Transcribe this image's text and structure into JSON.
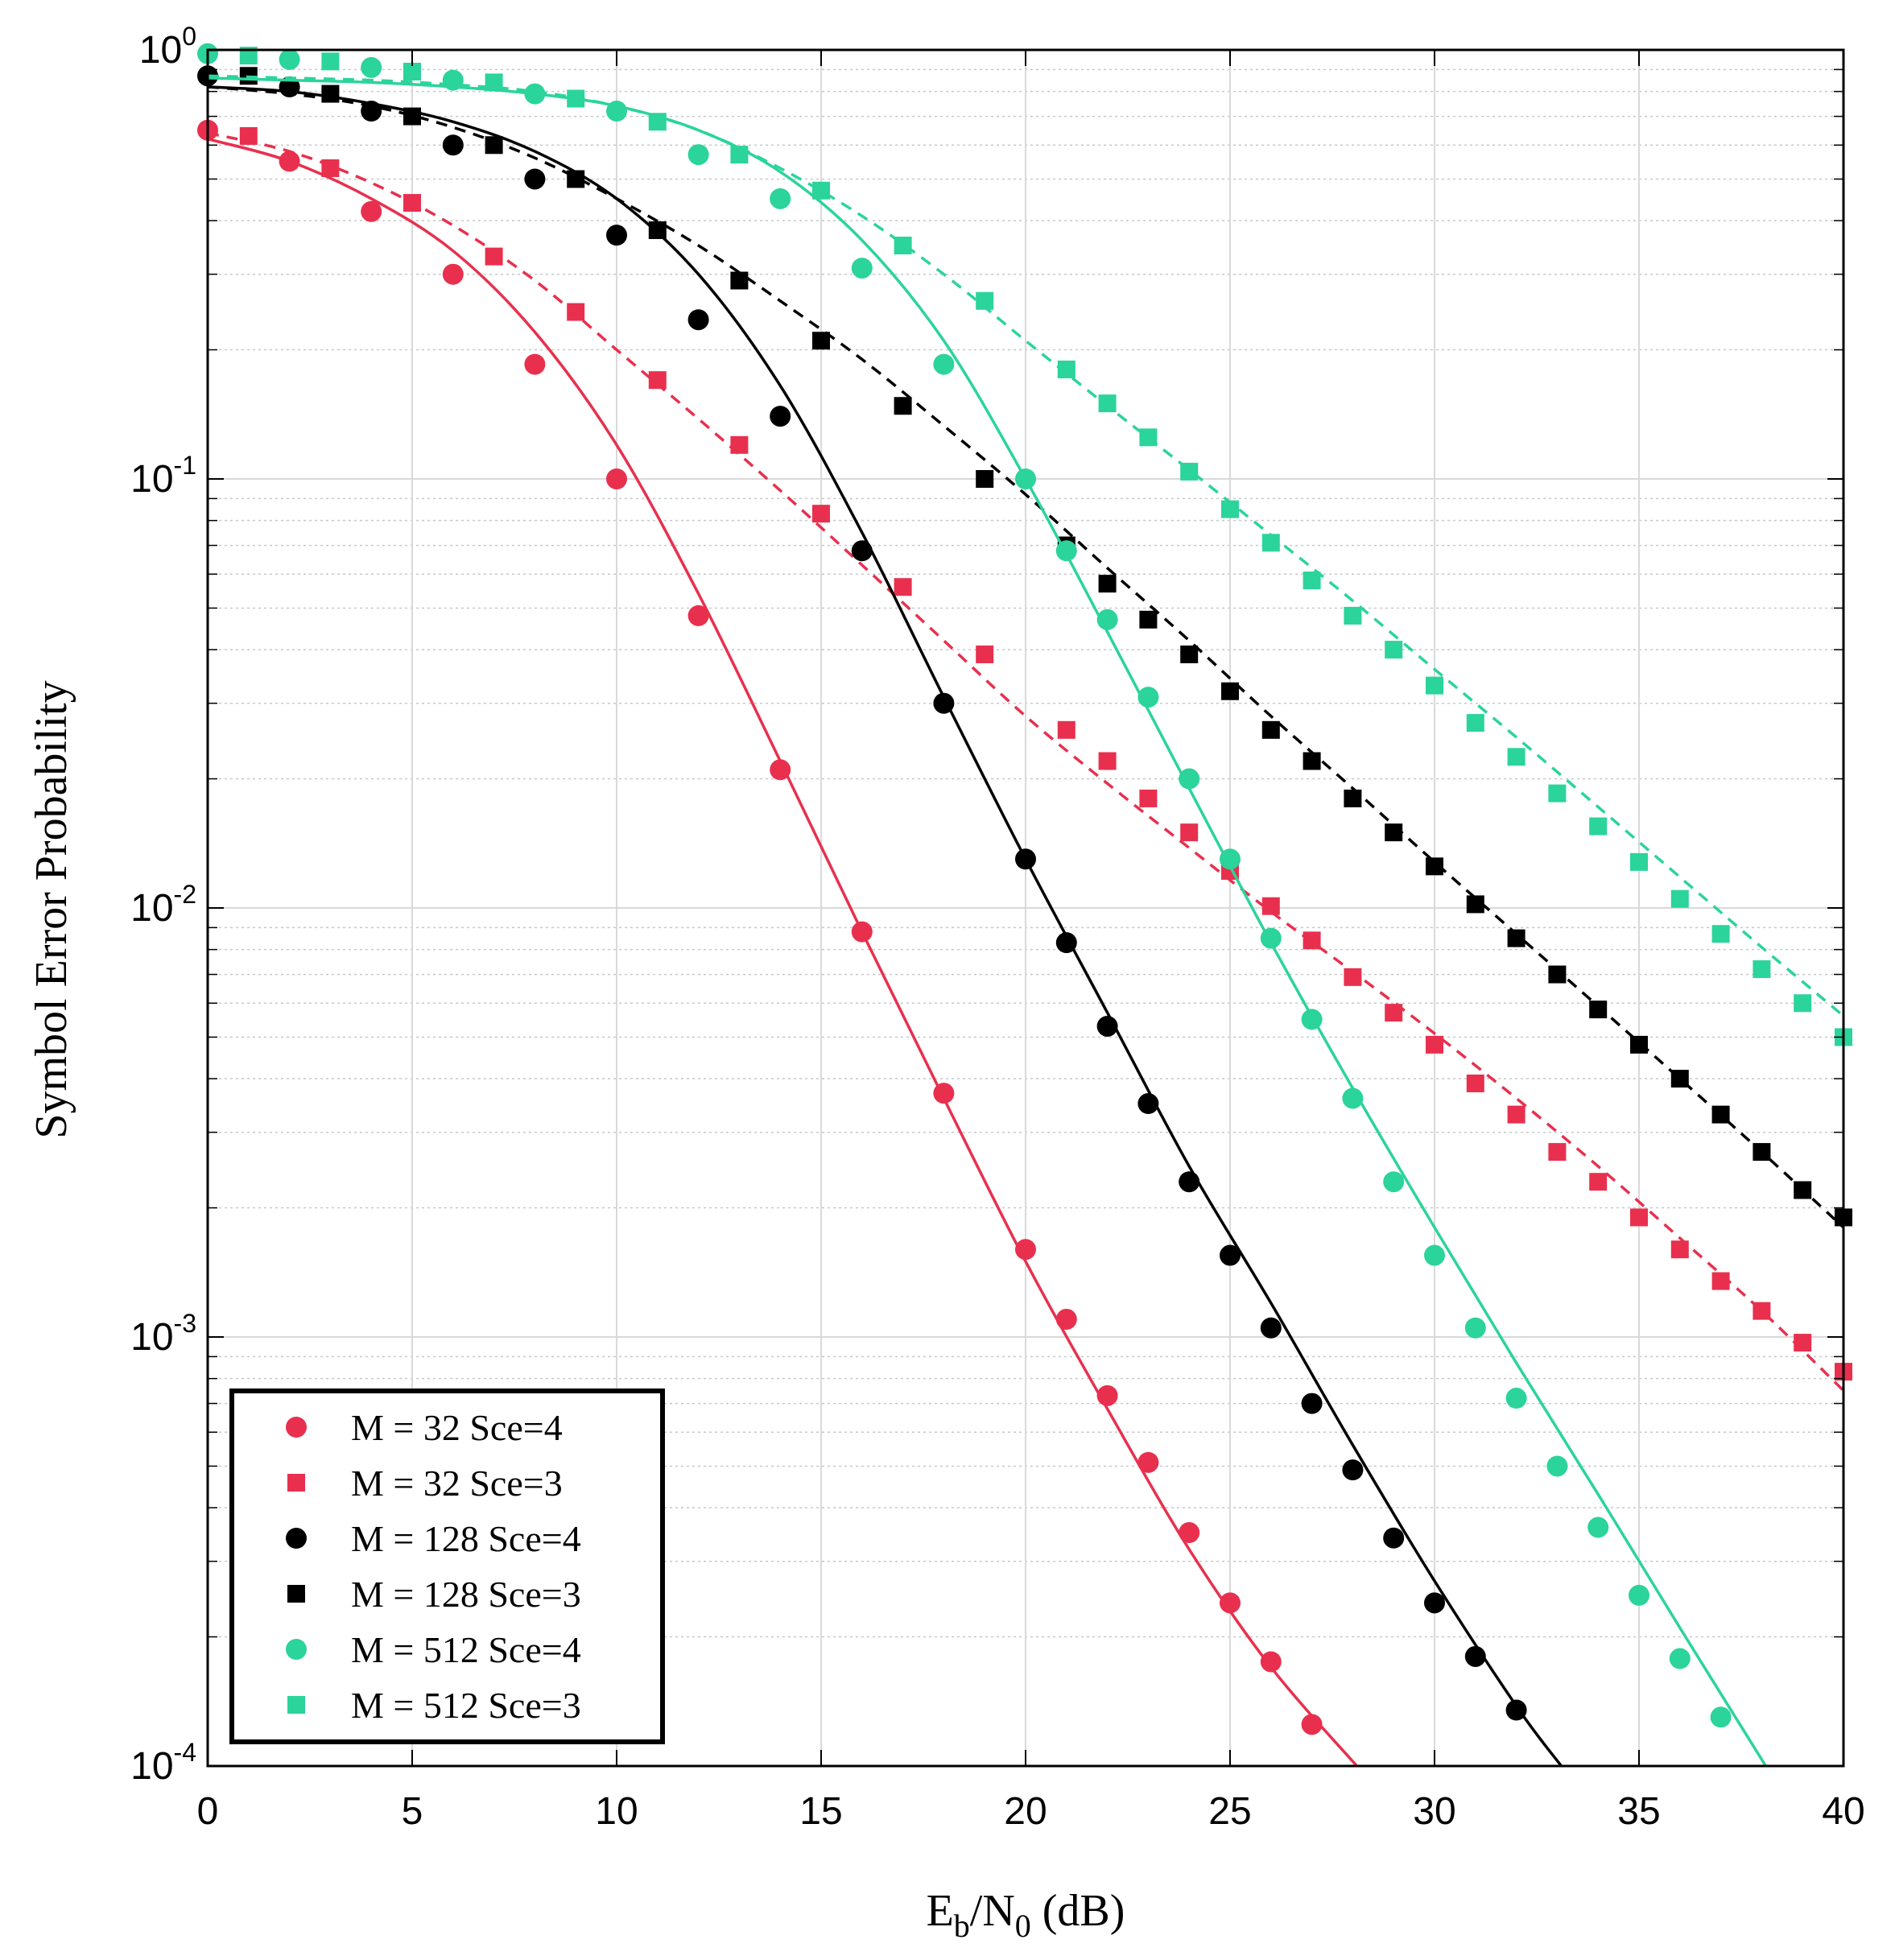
{
  "chart_data": {
    "type": "line",
    "xlabel": "E_b/N_0 (dB)",
    "xlabel_parts": {
      "base1": "E",
      "sub1": "b",
      "mid": "/N",
      "sub2": "0",
      "tail": " (dB)"
    },
    "ylabel": "Symbol Error Probability",
    "xlim": [
      0,
      40
    ],
    "ylim": [
      0.0001,
      1
    ],
    "yscale": "log",
    "grid": true,
    "legend_position": "bottom-left",
    "x_ticks": [
      "0",
      "5",
      "10",
      "15",
      "20",
      "25",
      "30",
      "35",
      "40"
    ],
    "y_ticks": [
      {
        "base": "10",
        "exp": "0"
      },
      {
        "base": "10",
        "exp": "-1"
      },
      {
        "base": "10",
        "exp": "-2"
      },
      {
        "base": "10",
        "exp": "-3"
      },
      {
        "base": "10",
        "exp": "-4"
      }
    ],
    "series": [
      {
        "name": "M = 32 Sce=4",
        "color": "#e8304e",
        "marker": "circle",
        "markers": {
          "x": [
            0,
            2,
            4,
            6,
            8,
            10,
            12,
            14,
            16,
            18,
            20,
            21,
            22,
            23,
            24,
            25,
            26,
            27
          ],
          "y": [
            0.65,
            0.55,
            0.42,
            0.3,
            0.185,
            0.1,
            0.048,
            0.021,
            0.0088,
            0.0037,
            0.0016,
            0.0011,
            0.00073,
            0.00051,
            0.00035,
            0.00024,
            0.000175,
            0.000125
          ]
        },
        "curve": {
          "style": "solid",
          "x": [
            0,
            2,
            4,
            6,
            8,
            10,
            12,
            14,
            16,
            18,
            20,
            22,
            24,
            26,
            28.1
          ],
          "y": [
            0.62,
            0.55,
            0.45,
            0.34,
            0.22,
            0.12,
            0.054,
            0.022,
            0.0088,
            0.0036,
            0.0015,
            0.00068,
            0.00032,
            0.00017,
            0.0001
          ]
        }
      },
      {
        "name": "M = 32 Sce=3",
        "color": "#e8304e",
        "marker": "square",
        "markers": {
          "x": [
            1,
            3,
            5,
            7,
            9,
            11,
            13,
            15,
            17,
            19,
            21,
            22,
            23,
            24,
            25,
            26,
            27,
            28,
            29,
            30,
            31,
            32,
            33,
            34,
            35,
            36,
            37,
            38,
            39,
            40
          ],
          "y": [
            0.63,
            0.53,
            0.44,
            0.33,
            0.245,
            0.17,
            0.12,
            0.083,
            0.056,
            0.039,
            0.026,
            0.022,
            0.018,
            0.015,
            0.0122,
            0.0101,
            0.0084,
            0.0069,
            0.0057,
            0.0048,
            0.0039,
            0.0033,
            0.0027,
            0.0023,
            0.0019,
            0.0016,
            0.00135,
            0.00115,
            0.00097,
            0.00083
          ]
        },
        "curve": {
          "style": "dashed",
          "x": [
            0,
            2,
            4,
            6,
            8,
            10,
            12,
            14,
            16,
            18,
            20,
            22,
            24,
            26,
            28,
            30,
            32,
            34,
            36,
            38,
            40
          ],
          "y": [
            0.64,
            0.58,
            0.49,
            0.39,
            0.29,
            0.2,
            0.138,
            0.094,
            0.063,
            0.042,
            0.028,
            0.0195,
            0.0138,
            0.0098,
            0.0071,
            0.0051,
            0.0036,
            0.0025,
            0.0017,
            0.00115,
            0.00075
          ]
        }
      },
      {
        "name": "M = 128 Sce=4",
        "color": "#000000",
        "marker": "circle",
        "markers": {
          "x": [
            0,
            2,
            4,
            6,
            8,
            10,
            12,
            14,
            16,
            18,
            20,
            21,
            22,
            23,
            24,
            25,
            26,
            27,
            28,
            29,
            30,
            31,
            32
          ],
          "y": [
            0.87,
            0.82,
            0.72,
            0.6,
            0.5,
            0.37,
            0.235,
            0.14,
            0.068,
            0.03,
            0.013,
            0.0083,
            0.0053,
            0.0035,
            0.0023,
            0.00155,
            0.00105,
            0.0007,
            0.00049,
            0.00034,
            0.00024,
            0.00018,
            0.000135
          ]
        },
        "curve": {
          "style": "solid",
          "x": [
            0,
            2,
            4,
            6,
            8,
            10,
            12,
            14,
            16,
            18,
            20,
            22,
            24,
            26,
            28,
            30,
            32,
            33.1
          ],
          "y": [
            0.82,
            0.8,
            0.75,
            0.68,
            0.58,
            0.45,
            0.3,
            0.165,
            0.075,
            0.031,
            0.013,
            0.0057,
            0.0025,
            0.0012,
            0.00056,
            0.00027,
            0.000138,
            0.0001
          ]
        }
      },
      {
        "name": "M = 128 Sce=3",
        "color": "#000000",
        "marker": "square",
        "markers": {
          "x": [
            1,
            3,
            5,
            7,
            9,
            11,
            13,
            15,
            17,
            19,
            21,
            22,
            23,
            24,
            25,
            26,
            27,
            28,
            29,
            30,
            31,
            32,
            33,
            34,
            35,
            36,
            37,
            38,
            39,
            40
          ],
          "y": [
            0.87,
            0.79,
            0.7,
            0.6,
            0.5,
            0.38,
            0.29,
            0.21,
            0.148,
            0.1,
            0.07,
            0.057,
            0.047,
            0.039,
            0.032,
            0.026,
            0.022,
            0.018,
            0.015,
            0.0125,
            0.0102,
            0.0085,
            0.007,
            0.0058,
            0.0048,
            0.004,
            0.0033,
            0.0027,
            0.0022,
            0.0019
          ]
        },
        "curve": {
          "style": "dashed",
          "x": [
            0,
            2,
            4,
            6,
            8,
            10,
            12,
            14,
            16,
            18,
            20,
            22,
            24,
            26,
            28,
            30,
            32,
            34,
            36,
            38,
            40
          ],
          "y": [
            0.82,
            0.79,
            0.74,
            0.66,
            0.56,
            0.45,
            0.35,
            0.26,
            0.19,
            0.133,
            0.092,
            0.062,
            0.042,
            0.028,
            0.019,
            0.0128,
            0.0087,
            0.0059,
            0.004,
            0.0027,
            0.0018
          ]
        }
      },
      {
        "name": "M = 512 Sce=4",
        "color": "#2bd49a",
        "marker": "circle",
        "markers": {
          "x": [
            0,
            2,
            4,
            6,
            8,
            10,
            12,
            14,
            16,
            18,
            20,
            21,
            22,
            23,
            24,
            25,
            26,
            27,
            28,
            29,
            30,
            31,
            32,
            33,
            34,
            35,
            36,
            37
          ],
          "y": [
            0.98,
            0.95,
            0.91,
            0.85,
            0.79,
            0.72,
            0.57,
            0.45,
            0.31,
            0.185,
            0.1,
            0.068,
            0.047,
            0.031,
            0.02,
            0.013,
            0.0085,
            0.0055,
            0.0036,
            0.0023,
            0.00155,
            0.00105,
            0.00072,
            0.0005,
            0.00036,
            0.00025,
            0.000178,
            0.00013
          ]
        },
        "curve": {
          "style": "solid",
          "x": [
            0,
            2,
            4,
            6,
            8,
            10,
            12,
            14,
            16,
            18,
            20,
            22,
            24,
            26,
            28,
            30,
            32,
            34,
            36,
            38.1
          ],
          "y": [
            0.86,
            0.85,
            0.84,
            0.82,
            0.79,
            0.74,
            0.65,
            0.52,
            0.36,
            0.21,
            0.1,
            0.044,
            0.019,
            0.0083,
            0.0038,
            0.0018,
            0.00087,
            0.00043,
            0.00021,
            0.0001
          ]
        }
      },
      {
        "name": "M = 512 Sce=3",
        "color": "#2bd49a",
        "marker": "square",
        "markers": {
          "x": [
            1,
            3,
            5,
            7,
            9,
            11,
            13,
            15,
            17,
            19,
            21,
            22,
            23,
            24,
            25,
            26,
            27,
            28,
            29,
            30,
            31,
            32,
            33,
            34,
            35,
            36,
            37,
            38,
            39,
            40
          ],
          "y": [
            0.97,
            0.94,
            0.89,
            0.84,
            0.77,
            0.68,
            0.57,
            0.47,
            0.35,
            0.26,
            0.18,
            0.15,
            0.125,
            0.104,
            0.085,
            0.071,
            0.058,
            0.048,
            0.04,
            0.033,
            0.027,
            0.0225,
            0.0185,
            0.0155,
            0.0128,
            0.0105,
            0.0087,
            0.0072,
            0.006,
            0.005
          ]
        },
        "curve": {
          "style": "dashed",
          "x": [
            0,
            2,
            4,
            6,
            8,
            10,
            12,
            14,
            16,
            18,
            20,
            22,
            24,
            26,
            28,
            30,
            32,
            34,
            36,
            38,
            40
          ],
          "y": [
            0.87,
            0.86,
            0.85,
            0.83,
            0.8,
            0.74,
            0.65,
            0.53,
            0.41,
            0.3,
            0.21,
            0.148,
            0.105,
            0.074,
            0.052,
            0.036,
            0.025,
            0.0172,
            0.0118,
            0.0081,
            0.0056
          ]
        }
      }
    ]
  }
}
